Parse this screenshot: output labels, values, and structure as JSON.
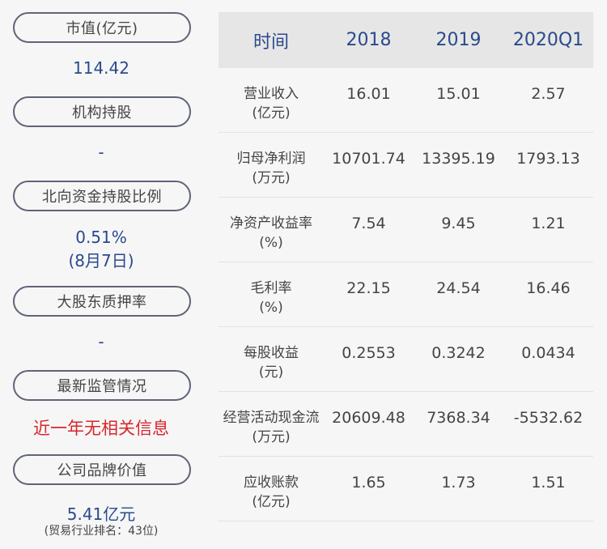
{
  "left_panel": {
    "market_cap": {
      "label": "市值(亿元)",
      "value": "114.42"
    },
    "institution": {
      "label": "机构持股",
      "value": "-"
    },
    "northbound": {
      "label": "北向资金持股比例",
      "value": "0.51%",
      "note": "(8月7日)"
    },
    "pledge": {
      "label": "大股东质押率",
      "value": "-"
    },
    "regulation": {
      "label": "最新监管情况",
      "value": "近一年无相关信息"
    },
    "brand": {
      "label": "公司品牌价值",
      "value": "5.41亿元",
      "note": "(贸易行业排名：43位)"
    }
  },
  "table": {
    "headers": [
      "时间",
      "2018",
      "2019",
      "2020Q1"
    ],
    "rows": [
      {
        "name": "营业收入",
        "unit": "(亿元)",
        "values": [
          "16.01",
          "15.01",
          "2.57"
        ]
      },
      {
        "name": "归母净利润",
        "unit": "(万元)",
        "values": [
          "10701.74",
          "13395.19",
          "1793.13"
        ]
      },
      {
        "name": "净资产收益率",
        "unit": "(%)",
        "values": [
          "7.54",
          "9.45",
          "1.21"
        ]
      },
      {
        "name": "毛利率",
        "unit": "(%)",
        "values": [
          "22.15",
          "24.54",
          "16.46"
        ]
      },
      {
        "name": "每股收益",
        "unit": "(元)",
        "values": [
          "0.2553",
          "0.3242",
          "0.0434"
        ]
      },
      {
        "name": "经营活动现金流",
        "unit": "(万元)",
        "values": [
          "20609.48",
          "7368.34",
          "-5532.62"
        ]
      },
      {
        "name": "应收账款",
        "unit": "(亿元)",
        "values": [
          "1.65",
          "1.73",
          "1.51"
        ]
      }
    ]
  }
}
